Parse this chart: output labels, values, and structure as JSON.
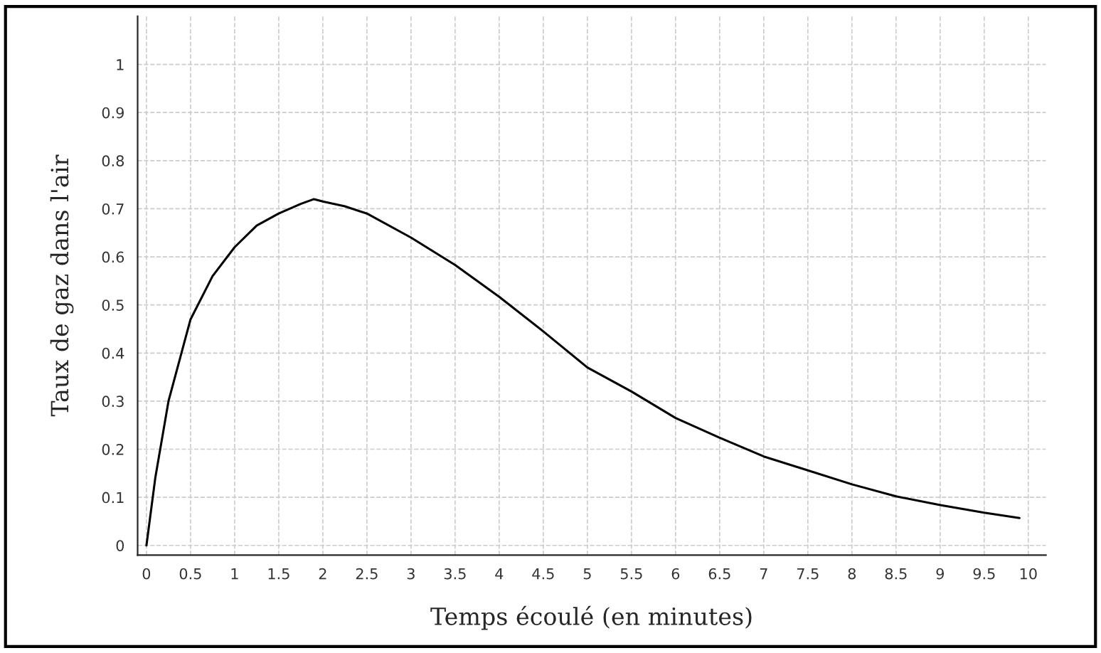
{
  "chart_data": {
    "type": "line",
    "xlabel": "Temps écoulé (en minutes)",
    "ylabel": "Taux de gaz dans l'air",
    "x": [
      0,
      0.1,
      0.25,
      0.5,
      0.75,
      1,
      1.25,
      1.5,
      1.75,
      1.9,
      2,
      2.25,
      2.5,
      3,
      3.5,
      4,
      4.5,
      5,
      5.5,
      6,
      6.5,
      7,
      7.5,
      8,
      8.5,
      9,
      9.5,
      9.9
    ],
    "series": [
      {
        "color": "#000000",
        "values": [
          0,
          0.14,
          0.3,
          0.47,
          0.56,
          0.62,
          0.665,
          0.69,
          0.71,
          0.72,
          0.715,
          0.705,
          0.69,
          0.64,
          0.583,
          0.517,
          0.445,
          0.37,
          0.32,
          0.265,
          0.224,
          0.185,
          0.156,
          0.127,
          0.102,
          0.084,
          0.068,
          0.057
        ]
      }
    ],
    "xlim": [
      -0.1,
      10.2
    ],
    "ylim": [
      -0.02,
      1.1
    ],
    "xticks": [
      0,
      0.5,
      1,
      1.5,
      2,
      2.5,
      3,
      3.5,
      4,
      4.5,
      5,
      5.5,
      6,
      6.5,
      7,
      7.5,
      8,
      8.5,
      9,
      9.5,
      10
    ],
    "yticks": [
      0,
      0.1,
      0.2,
      0.3,
      0.4,
      0.5,
      0.6,
      0.7,
      0.8,
      0.9,
      1
    ],
    "grid": true,
    "marker": "none",
    "line_style": "solid",
    "legend": false
  }
}
